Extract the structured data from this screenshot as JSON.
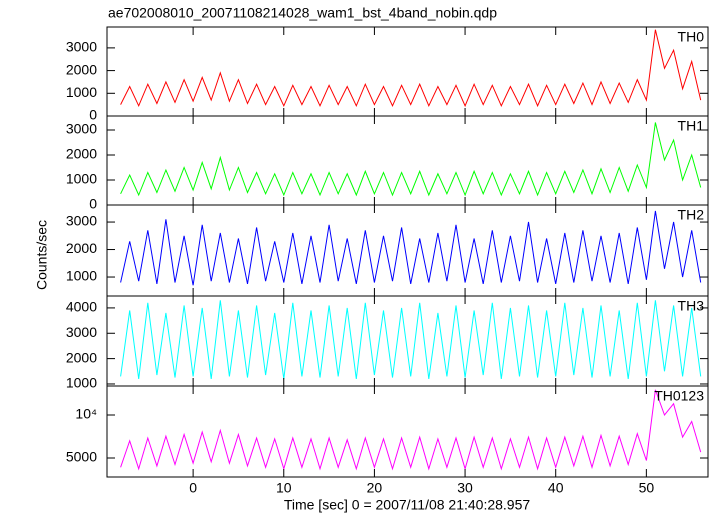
{
  "title": "ae702008010_20071108214028_wam1_bst_4band_nobin.qdp",
  "ylabel": "Counts/sec",
  "xlabel": "Time [sec] 0 = 2007/11/08 21:40:28.957",
  "chart_data": [
    {
      "type": "line",
      "xlim": [
        -9.5,
        56.8
      ],
      "xticks": [
        0,
        10,
        20,
        30,
        40,
        50
      ],
      "ylim": [
        0,
        3920
      ],
      "yticks": [
        0,
        1000,
        2000,
        3000
      ],
      "x": [
        -8,
        -7,
        -6,
        -5,
        -4,
        -3,
        -2,
        -1,
        0,
        1,
        2,
        3,
        4,
        5,
        6,
        7,
        8,
        9,
        10,
        11,
        12,
        13,
        14,
        15,
        16,
        17,
        18,
        19,
        20,
        21,
        22,
        23,
        24,
        25,
        26,
        27,
        28,
        29,
        30,
        31,
        32,
        33,
        34,
        35,
        36,
        37,
        38,
        39,
        40,
        41,
        42,
        43,
        44,
        45,
        46,
        47,
        48,
        49,
        50,
        51,
        52,
        53,
        54,
        55,
        56
      ],
      "series": [
        {
          "name": "TH0",
          "color": "#ff0000",
          "values": [
            500,
            1300,
            450,
            1400,
            550,
            1500,
            600,
            1600,
            650,
            1700,
            700,
            1900,
            650,
            1600,
            550,
            1400,
            500,
            1300,
            450,
            1350,
            500,
            1300,
            450,
            1350,
            500,
            1300,
            450,
            1400,
            500,
            1300,
            450,
            1350,
            500,
            1400,
            450,
            1300,
            500,
            1350,
            450,
            1400,
            500,
            1350,
            450,
            1300,
            500,
            1400,
            450,
            1350,
            500,
            1400,
            550,
            1450,
            500,
            1500,
            550,
            1450,
            600,
            1600,
            700,
            3800,
            2100,
            2900,
            1200,
            2400,
            700
          ]
        }
      ]
    },
    {
      "type": "line",
      "xlim": [
        -9.5,
        56.8
      ],
      "xticks": [
        0,
        10,
        20,
        30,
        40,
        50
      ],
      "ylim": [
        0,
        3560
      ],
      "yticks": [
        0,
        1000,
        2000,
        3000
      ],
      "x": [
        -8,
        -7,
        -6,
        -5,
        -4,
        -3,
        -2,
        -1,
        0,
        1,
        2,
        3,
        4,
        5,
        6,
        7,
        8,
        9,
        10,
        11,
        12,
        13,
        14,
        15,
        16,
        17,
        18,
        19,
        20,
        21,
        22,
        23,
        24,
        25,
        26,
        27,
        28,
        29,
        30,
        31,
        32,
        33,
        34,
        35,
        36,
        37,
        38,
        39,
        40,
        41,
        42,
        43,
        44,
        45,
        46,
        47,
        48,
        49,
        50,
        51,
        52,
        53,
        54,
        55,
        56
      ],
      "series": [
        {
          "name": "TH1",
          "color": "#00ff00",
          "values": [
            450,
            1200,
            400,
            1300,
            500,
            1400,
            550,
            1500,
            600,
            1700,
            650,
            1900,
            600,
            1500,
            500,
            1300,
            450,
            1250,
            400,
            1300,
            450,
            1250,
            400,
            1300,
            450,
            1250,
            400,
            1350,
            450,
            1300,
            400,
            1300,
            450,
            1350,
            400,
            1250,
            450,
            1300,
            400,
            1350,
            450,
            1300,
            400,
            1250,
            450,
            1350,
            400,
            1300,
            450,
            1350,
            500,
            1400,
            450,
            1450,
            500,
            1500,
            550,
            1600,
            700,
            3300,
            1800,
            2600,
            1000,
            2000,
            700
          ]
        }
      ]
    },
    {
      "type": "line",
      "xlim": [
        -9.5,
        56.8
      ],
      "xticks": [
        0,
        10,
        20,
        30,
        40,
        50
      ],
      "ylim": [
        310,
        3620
      ],
      "yticks": [
        1000,
        2000,
        3000
      ],
      "x": [
        -8,
        -7,
        -6,
        -5,
        -4,
        -3,
        -2,
        -1,
        0,
        1,
        2,
        3,
        4,
        5,
        6,
        7,
        8,
        9,
        10,
        11,
        12,
        13,
        14,
        15,
        16,
        17,
        18,
        19,
        20,
        21,
        22,
        23,
        24,
        25,
        26,
        27,
        28,
        29,
        30,
        31,
        32,
        33,
        34,
        35,
        36,
        37,
        38,
        39,
        40,
        41,
        42,
        43,
        44,
        45,
        46,
        47,
        48,
        49,
        50,
        51,
        52,
        53,
        54,
        55,
        56
      ],
      "series": [
        {
          "name": "TH2",
          "color": "#0000ff",
          "values": [
            800,
            2300,
            850,
            2700,
            750,
            3100,
            800,
            2500,
            700,
            2900,
            850,
            2600,
            800,
            2400,
            750,
            2800,
            850,
            2300,
            800,
            2600,
            750,
            2500,
            800,
            2900,
            850,
            2400,
            750,
            2700,
            800,
            2500,
            850,
            2800,
            750,
            2400,
            800,
            2600,
            850,
            2900,
            800,
            2400,
            750,
            2700,
            800,
            2500,
            850,
            3000,
            800,
            2400,
            750,
            2600,
            800,
            2700,
            850,
            2500,
            800,
            2600,
            750,
            2800,
            900,
            3400,
            1300,
            3000,
            1000,
            2700,
            800
          ]
        }
      ]
    },
    {
      "type": "line",
      "xlim": [
        -9.5,
        56.8
      ],
      "xticks": [
        0,
        10,
        20,
        30,
        40,
        50
      ],
      "ylim": [
        920,
        4470
      ],
      "yticks": [
        1000,
        2000,
        3000,
        4000
      ],
      "x": [
        -8,
        -7,
        -6,
        -5,
        -4,
        -3,
        -2,
        -1,
        0,
        1,
        2,
        3,
        4,
        5,
        6,
        7,
        8,
        9,
        10,
        11,
        12,
        13,
        14,
        15,
        16,
        17,
        18,
        19,
        20,
        21,
        22,
        23,
        24,
        25,
        26,
        27,
        28,
        29,
        30,
        31,
        32,
        33,
        34,
        35,
        36,
        37,
        38,
        39,
        40,
        41,
        42,
        43,
        44,
        45,
        46,
        47,
        48,
        49,
        50,
        51,
        52,
        53,
        54,
        55,
        56
      ],
      "series": [
        {
          "name": "TH3",
          "color": "#00ffff",
          "values": [
            1300,
            3900,
            1200,
            4200,
            1350,
            3800,
            1250,
            4100,
            1300,
            4000,
            1200,
            4300,
            1300,
            3900,
            1250,
            4100,
            1350,
            3800,
            1200,
            4200,
            1300,
            3900,
            1250,
            4100,
            1300,
            4000,
            1200,
            4200,
            1350,
            3900,
            1250,
            4000,
            1300,
            4200,
            1200,
            3800,
            1300,
            4100,
            1250,
            3900,
            1350,
            4200,
            1200,
            4000,
            1300,
            4100,
            1250,
            3900,
            1300,
            4200,
            1350,
            4000,
            1250,
            4100,
            1300,
            3900,
            1200,
            4200,
            1300,
            4300,
            1500,
            4100,
            1300,
            4000,
            1300
          ]
        }
      ]
    },
    {
      "type": "line",
      "log_y": true,
      "xlim": [
        -9.5,
        56.8
      ],
      "xticks": [
        0,
        10,
        20,
        30,
        40,
        50
      ],
      "ylim": [
        3680,
        15960
      ],
      "yticks": [
        5000,
        {
          "value": 10000,
          "label": "10⁴"
        }
      ],
      "x": [
        -8,
        -7,
        -6,
        -5,
        -4,
        -3,
        -2,
        -1,
        0,
        1,
        2,
        3,
        4,
        5,
        6,
        7,
        8,
        9,
        10,
        11,
        12,
        13,
        14,
        15,
        16,
        17,
        18,
        19,
        20,
        21,
        22,
        23,
        24,
        25,
        26,
        27,
        28,
        29,
        30,
        31,
        32,
        33,
        34,
        35,
        36,
        37,
        38,
        39,
        40,
        41,
        42,
        43,
        44,
        45,
        46,
        47,
        48,
        49,
        50,
        51,
        52,
        53,
        54,
        55,
        56
      ],
      "series": [
        {
          "name": "TH0123",
          "color": "#ff00ff",
          "values": [
            4300,
            6600,
            4200,
            6900,
            4400,
            7100,
            4500,
            7300,
            4600,
            7600,
            4700,
            7800,
            4600,
            7300,
            4400,
            6900,
            4300,
            6800,
            4200,
            6900,
            4300,
            6800,
            4200,
            6900,
            4300,
            6700,
            4200,
            6900,
            4300,
            6800,
            4200,
            6900,
            4300,
            7000,
            4200,
            6800,
            4300,
            6900,
            4200,
            7000,
            4300,
            6900,
            4200,
            6800,
            4300,
            7000,
            4200,
            6900,
            4300,
            7000,
            4400,
            7100,
            4300,
            7200,
            4400,
            7100,
            4500,
            7400,
            4800,
            15000,
            10000,
            12000,
            7000,
            9000,
            5500
          ]
        }
      ]
    }
  ]
}
